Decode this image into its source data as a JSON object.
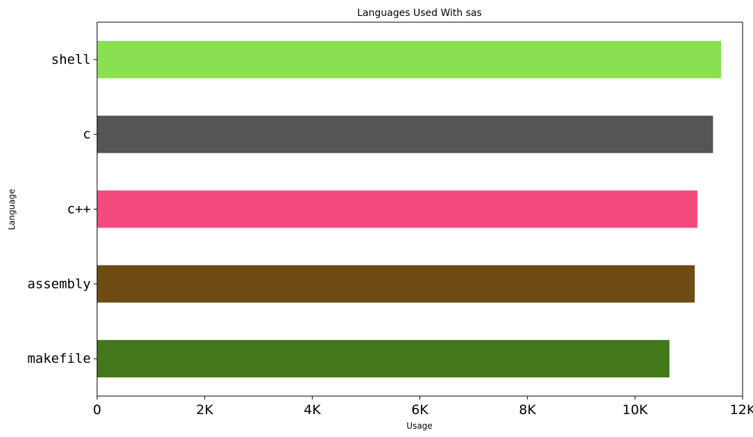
{
  "chart_data": {
    "type": "bar",
    "orientation": "horizontal",
    "title": "Languages Used With sas",
    "xlabel": "Usage",
    "ylabel": "Language",
    "categories": [
      "shell",
      "c",
      "c++",
      "assembly",
      "makefile"
    ],
    "values": [
      11600,
      11450,
      11160,
      11110,
      10640
    ],
    "colors": [
      "#89e051",
      "#555555",
      "#f34b7d",
      "#6e4c13",
      "#427819"
    ],
    "xlim": [
      0,
      12000
    ],
    "x_ticks": [
      0,
      2000,
      4000,
      6000,
      8000,
      10000,
      12000
    ],
    "x_tick_labels": [
      "0",
      "2K",
      "4K",
      "6K",
      "8K",
      "10K",
      "12K"
    ],
    "grid": false,
    "legend": "none"
  }
}
